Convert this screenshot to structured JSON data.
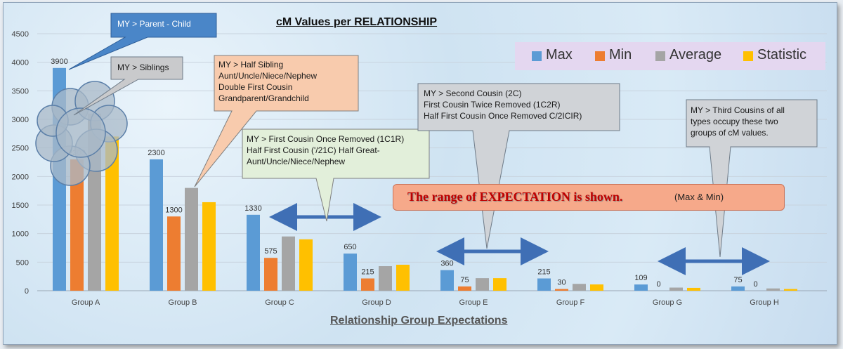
{
  "chart_data": {
    "type": "bar",
    "title": "cM Values per RELATIONSHIP",
    "xlabel": "Relationship Group Expectations",
    "ylabel": "",
    "ylim": [
      0,
      4500
    ],
    "yticks": [
      0,
      500,
      1000,
      1500,
      2000,
      2500,
      3000,
      3500,
      4000,
      4500
    ],
    "grid": true,
    "legend_position": "top-right",
    "categories": [
      "Group A",
      "Group B",
      "Group C",
      "Group D",
      "Group E",
      "Group F",
      "Group G",
      "Group H"
    ],
    "series": [
      {
        "name": "Max",
        "color": "#5b9bd5",
        "values": [
          3900,
          2300,
          1330,
          650,
          360,
          215,
          109,
          75
        ],
        "labels": [
          "3900",
          "2300",
          "1330",
          "650",
          "360",
          "215",
          "109",
          "75"
        ]
      },
      {
        "name": "Min",
        "color": "#ed7d31",
        "values": [
          2300,
          1300,
          575,
          215,
          75,
          30,
          0,
          0
        ],
        "labels": [
          "2300",
          "1300",
          "575",
          "215",
          "75",
          "30",
          "0",
          "0"
        ]
      },
      {
        "name": "Average",
        "color": "#a5a5a5",
        "values": [
          3100,
          1800,
          950,
          430,
          220,
          120,
          55,
          40
        ],
        "labels": []
      },
      {
        "name": "Statistic",
        "color": "#ffc000",
        "values": [
          2700,
          1550,
          900,
          455,
          220,
          110,
          50,
          30
        ],
        "labels": []
      }
    ]
  },
  "callouts": {
    "parent_child": "MY > Parent - Child",
    "siblings": "MY > Siblings",
    "half_sibling": [
      "MY >  Half Sibling",
      "Aunt/Uncle/Niece/Nephew",
      "Double First Cousin",
      "Grandparent/Grandchild"
    ],
    "first_cousin_1r": [
      "MY >  First Cousin Once Removed (1C1R)",
      "Half First Cousin ('/21C) Half Great-",
      "Aunt/Uncle/Niece/Nephew"
    ],
    "second_cousin": [
      "MY  > Second Cousin (2C)",
      "First Cousin Twice Removed (1C2R)",
      "Half First Cousin Once Removed C/2ICIR)"
    ],
    "third_cousin": [
      "MY  > Third Cousins of all",
      "types occupy these two",
      "groups of cM values."
    ]
  },
  "range_banner": {
    "text": "The range of EXPECTATION is shown.",
    "sub": "(Max & Min)",
    "color": "#f6a98a"
  }
}
